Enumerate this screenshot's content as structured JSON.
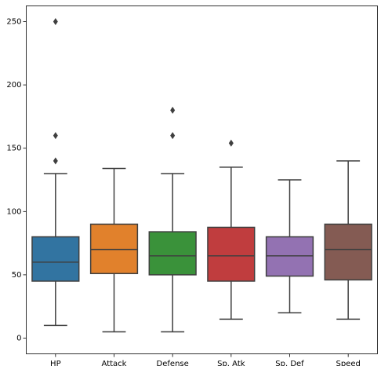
{
  "chart_data": {
    "type": "box",
    "categories": [
      "HP",
      "Attack",
      "Defense",
      "Sp. Atk",
      "Sp. Def",
      "Speed"
    ],
    "boxes": [
      {
        "color": "#3274a1",
        "min": 10,
        "q1": 45,
        "median": 60,
        "q3": 80,
        "max": 130,
        "outliers": [
          140,
          160,
          250
        ]
      },
      {
        "color": "#e1812c",
        "min": 5,
        "q1": 51,
        "median": 70,
        "q3": 90,
        "max": 134,
        "outliers": []
      },
      {
        "color": "#3a923a",
        "min": 5,
        "q1": 50,
        "median": 65,
        "q3": 84,
        "max": 130,
        "outliers": [
          160,
          180
        ]
      },
      {
        "color": "#c03d3e",
        "min": 15,
        "q1": 45,
        "median": 65,
        "q3": 87.5,
        "max": 135,
        "outliers": [
          154
        ]
      },
      {
        "color": "#9372b2",
        "min": 20,
        "q1": 49,
        "median": 65,
        "q3": 80,
        "max": 125,
        "outliers": []
      },
      {
        "color": "#845b53",
        "min": 15,
        "q1": 46,
        "median": 70,
        "q3": 90,
        "max": 140,
        "outliers": []
      }
    ],
    "ylim": [
      -12.4,
      262.4
    ],
    "yticks": [
      0,
      50,
      100,
      150,
      200,
      250
    ],
    "line_color": "#3f3f3f"
  }
}
